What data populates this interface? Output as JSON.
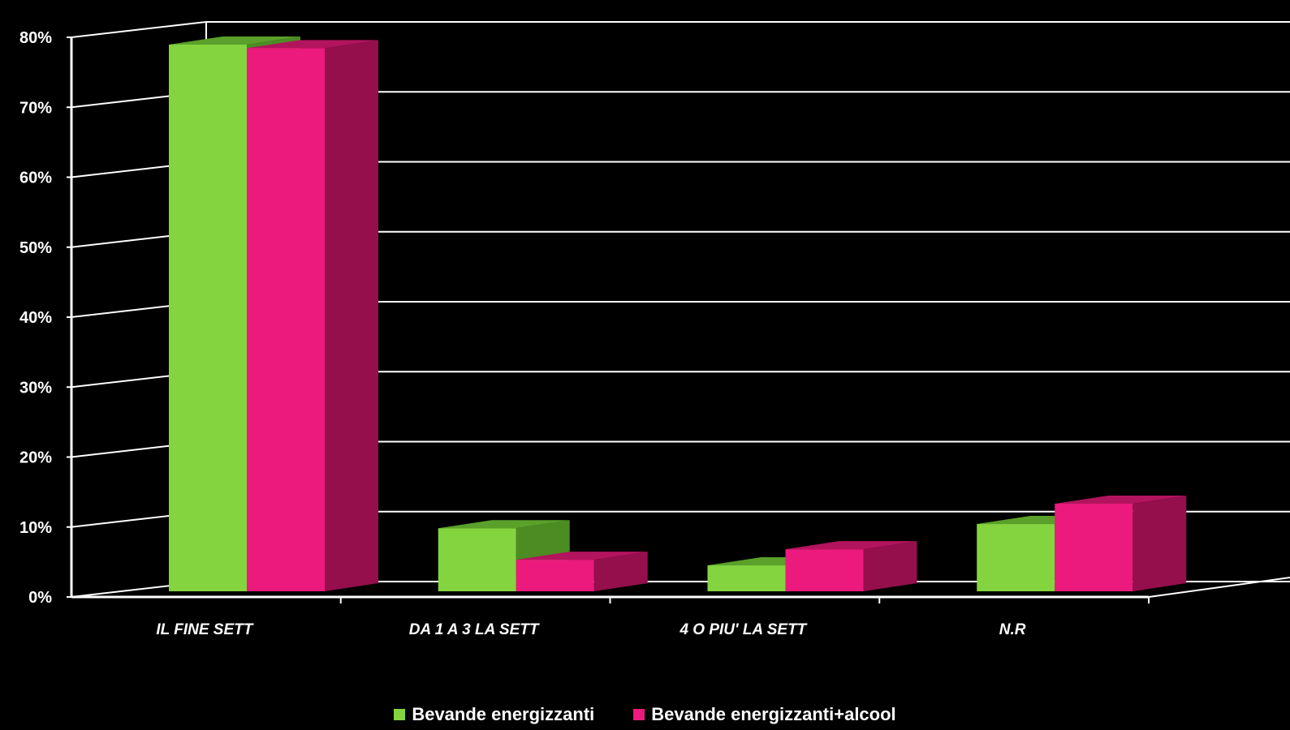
{
  "chart_data": {
    "type": "bar",
    "categories": [
      "IL FINE SETT",
      "DA 1 A 3  LA SETT",
      "4 O PIU' LA SETT",
      "N.R"
    ],
    "series": [
      {
        "name": "Bevande energizzanti",
        "values": [
          78,
          9,
          3.7,
          9.6
        ],
        "color": "#84d43f",
        "top_color": "#5aa02a",
        "side_color": "#4c8c23"
      },
      {
        "name": "Bevande energizzanti+alcool",
        "values": [
          77.5,
          4.5,
          6,
          12.5
        ],
        "color": "#ec1a7c",
        "top_color": "#b3145e",
        "side_color": "#950f4d"
      }
    ],
    "y_ticks": [
      "0%",
      "10%",
      "20%",
      "30%",
      "40%",
      "50%",
      "60%",
      "70%",
      "80%"
    ],
    "ylim": [
      0,
      80
    ],
    "grid": true,
    "legend_position": "bottom"
  }
}
